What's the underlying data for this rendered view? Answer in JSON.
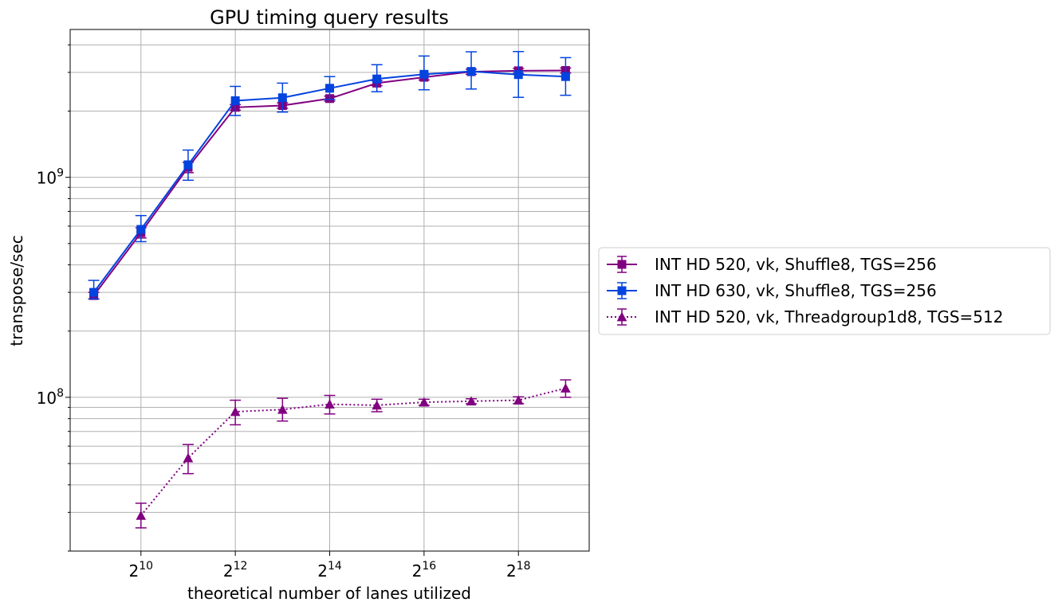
{
  "chart_data": {
    "type": "line",
    "title": "GPU timing query results",
    "xlabel": "theoretical number of lanes utilized",
    "ylabel": "transpose/sec",
    "x_scale": "log2",
    "y_scale": "log10",
    "xlim": [
      362,
      741455
    ],
    "ylim": [
      20000000,
      4700000000
    ],
    "x_ticks": [
      1024,
      4096,
      16384,
      65536,
      262144
    ],
    "x_tick_labels": [
      {
        "base": "2",
        "exp": "10"
      },
      {
        "base": "2",
        "exp": "12"
      },
      {
        "base": "2",
        "exp": "14"
      },
      {
        "base": "2",
        "exp": "16"
      },
      {
        "base": "2",
        "exp": "18"
      }
    ],
    "y_ticks": [
      100000000,
      1000000000
    ],
    "y_tick_labels": [
      {
        "base": "10",
        "exp": "8"
      },
      {
        "base": "10",
        "exp": "9"
      }
    ],
    "grid": true,
    "legend_position": "right-outside",
    "series": [
      {
        "name": "INT HD 520, vk, Shuffle8, TGS=256",
        "color": "#800080",
        "marker": "square",
        "linestyle": "solid",
        "x": [
          512,
          1024,
          2048,
          4096,
          8192,
          16384,
          32768,
          65536,
          131072,
          262144,
          524288
        ],
        "y": [
          290000000,
          560000000,
          1110000000,
          2080000000,
          2120000000,
          2280000000,
          2680000000,
          2850000000,
          3020000000,
          3050000000,
          3060000000
        ],
        "err_low": [
          10000000,
          30000000,
          60000000,
          60000000,
          60000000,
          60000000,
          70000000,
          80000000,
          80000000,
          80000000,
          80000000
        ],
        "err_high": [
          10000000,
          30000000,
          60000000,
          60000000,
          60000000,
          60000000,
          70000000,
          80000000,
          80000000,
          80000000,
          80000000
        ]
      },
      {
        "name": "INT HD 630, vk, Shuffle8, TGS=256",
        "color": "#0343df",
        "marker": "square",
        "linestyle": "solid",
        "x": [
          512,
          1024,
          2048,
          4096,
          8192,
          16384,
          32768,
          65536,
          131072,
          262144,
          524288
        ],
        "y": [
          300000000,
          580000000,
          1140000000,
          2230000000,
          2300000000,
          2540000000,
          2800000000,
          2940000000,
          3030000000,
          2930000000,
          2870000000
        ],
        "err_low": [
          20000000,
          70000000,
          170000000,
          320000000,
          320000000,
          280000000,
          350000000,
          440000000,
          510000000,
          620000000,
          510000000
        ],
        "err_high": [
          40000000,
          90000000,
          190000000,
          360000000,
          380000000,
          330000000,
          450000000,
          620000000,
          690000000,
          800000000,
          630000000
        ]
      },
      {
        "name": "INT HD 520, vk, Threadgroup1d8, TGS=512",
        "color": "#800080",
        "marker": "triangle",
        "linestyle": "dotted",
        "x": [
          1024,
          2048,
          4096,
          8192,
          16384,
          32768,
          65536,
          131072,
          262144,
          524288
        ],
        "y": [
          29000000,
          53000000,
          86000000,
          88000000,
          93000000,
          92000000,
          95000000,
          96000000,
          97000000,
          110000000
        ],
        "err_low": [
          3500000,
          8000000,
          11000000,
          10000000,
          9000000,
          6000000,
          3000000,
          2500000,
          3500000,
          10000000
        ],
        "err_high": [
          4000000,
          8000000,
          11000000,
          11000000,
          9000000,
          6000000,
          3000000,
          2500000,
          3500000,
          10000000
        ]
      }
    ]
  }
}
